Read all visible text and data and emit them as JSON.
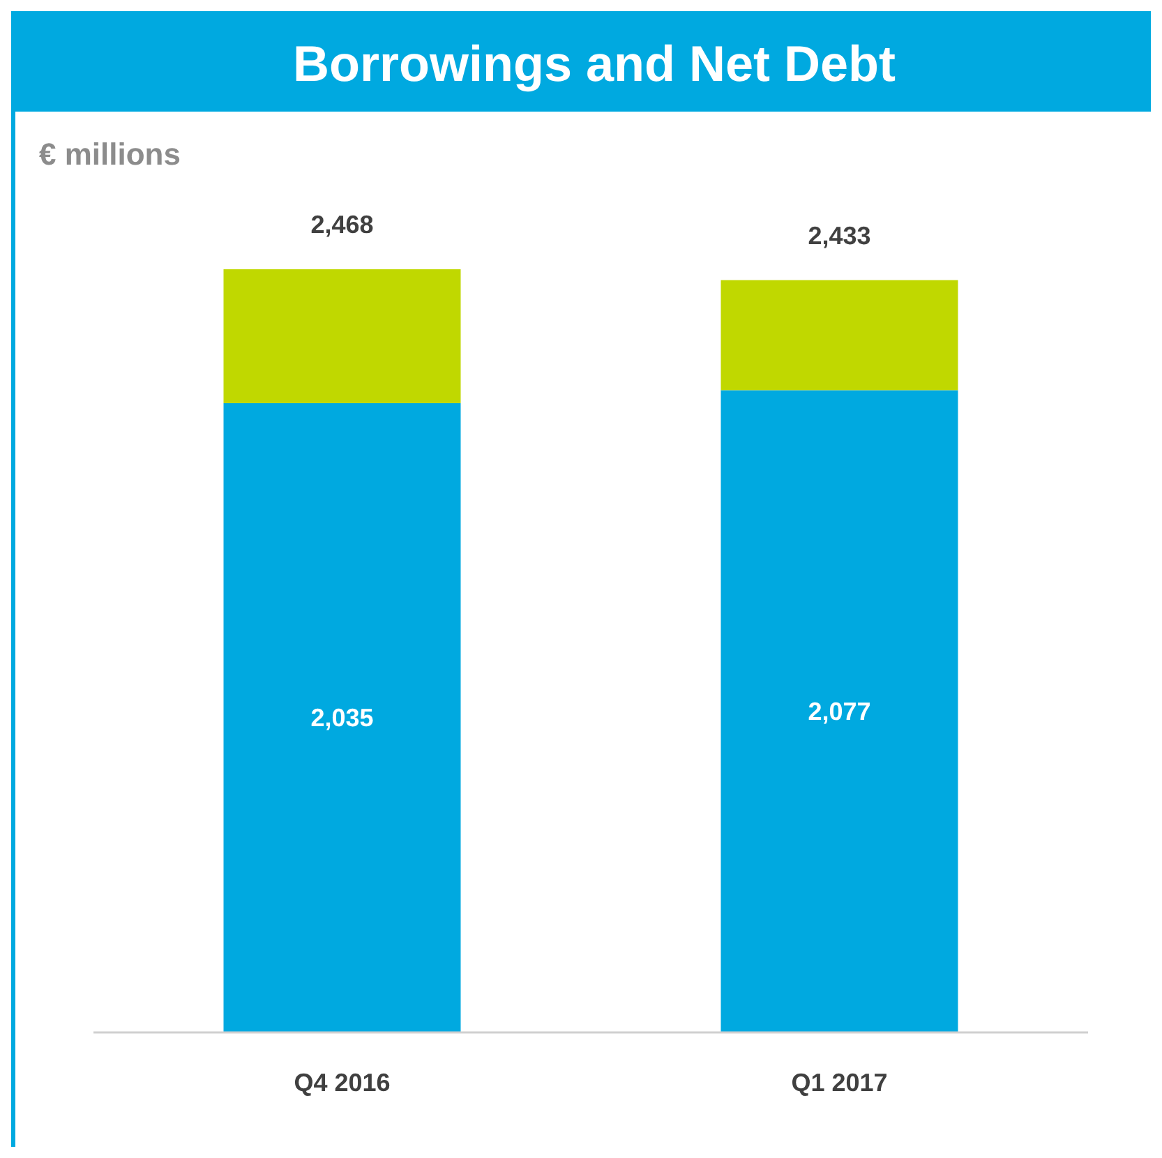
{
  "chart_data": {
    "type": "bar",
    "title": "Borrowings and Net Debt",
    "ylabel": "€ millions",
    "categories": [
      "Q4 2016",
      "Q1 2017"
    ],
    "stacked": true,
    "series": [
      {
        "color": "#00a9e0",
        "values": [
          2035,
          2077
        ],
        "value_labels": [
          "2,035",
          "2,077"
        ]
      },
      {
        "color": "#c0d800",
        "values": [
          433,
          356
        ],
        "value_labels": [
          null,
          null
        ]
      }
    ],
    "totals": [
      "2,468",
      "2,433"
    ]
  }
}
